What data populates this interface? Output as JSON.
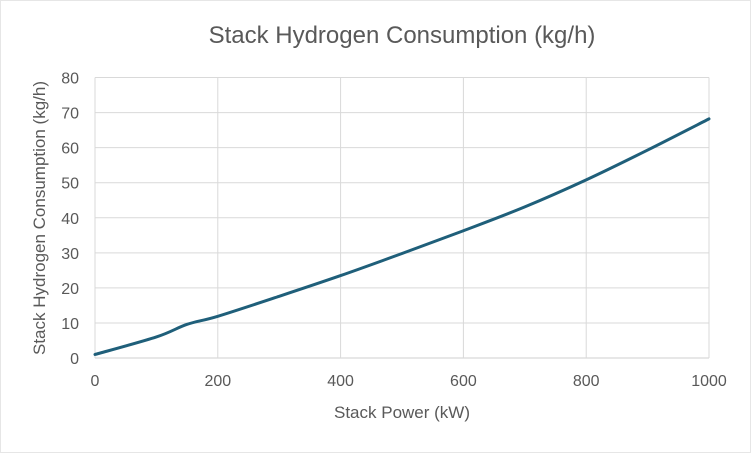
{
  "chart_data": {
    "type": "line",
    "title": "Stack Hydrogen Consumption (kg/h)",
    "xlabel": "Stack Power (kW)",
    "ylabel": "Stack Hydrogen Consumption (kg/h)",
    "xlim": [
      0,
      1000
    ],
    "ylim": [
      0,
      80
    ],
    "xticks": [
      0,
      200,
      400,
      600,
      800,
      1000
    ],
    "yticks": [
      0,
      10,
      20,
      30,
      40,
      50,
      60,
      70,
      80
    ],
    "grid": true,
    "legend": "none",
    "series": [
      {
        "name": "Stack Hydrogen Consumption (kg/h)",
        "color": "#1f5f7a",
        "x": [
          0,
          100,
          150,
          200,
          300,
          400,
          500,
          600,
          700,
          800,
          900,
          1000
        ],
        "y": [
          1.0,
          6.0,
          9.6,
          11.9,
          17.6,
          23.5,
          29.8,
          36.3,
          43.1,
          50.8,
          59.3,
          68.2
        ]
      }
    ]
  }
}
